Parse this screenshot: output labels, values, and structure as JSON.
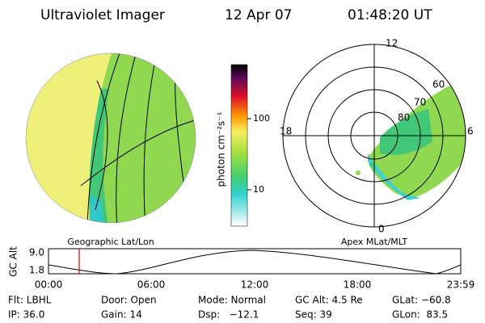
{
  "header": {
    "instrument": "Ultraviolet Imager",
    "date": "12 Apr 07",
    "time": "01:48:20 UT"
  },
  "colorbar": {
    "label": "photon cm⁻²s⁻¹",
    "ticks": [
      "100",
      "10"
    ]
  },
  "left_panel": {
    "caption": "Geographic Lat/Lon"
  },
  "right_panel": {
    "caption": "Apex MLat/MLT",
    "mlt_labels": [
      "12",
      "18",
      "6",
      "0"
    ],
    "mlat_labels": [
      "80",
      "70",
      "60"
    ]
  },
  "altitude_plot": {
    "axis_label": "GC Alt",
    "y_labels": [
      "9.0",
      "1.8"
    ],
    "x_labels": [
      "00:00",
      "06:00",
      "12:00",
      "18:00",
      "23:59"
    ]
  },
  "info": {
    "rows": [
      [
        "Flt: LBHL",
        "Door: Open",
        "Mode: Normal",
        "GC Alt: 4.5 Re",
        "GLat: −60.8"
      ],
      [
        "IP: 36.0",
        "Gain: 14",
        "Dsp:   −12.1",
        "Seq: 39",
        "GLon:  83.5"
      ]
    ]
  }
}
